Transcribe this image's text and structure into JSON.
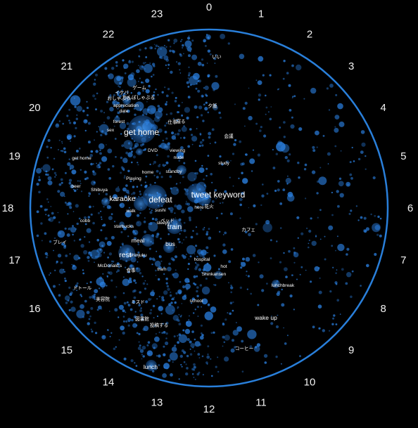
{
  "hours": [
    "0",
    "1",
    "2",
    "3",
    "4",
    "5",
    "6",
    "7",
    "8",
    "9",
    "10",
    "11",
    "12",
    "13",
    "14",
    "15",
    "16",
    "17",
    "18",
    "19",
    "20",
    "21",
    "22",
    "23"
  ],
  "keywords": [
    {
      "text": "get home",
      "size": "large"
    },
    {
      "text": "tweet keyword",
      "size": "large"
    },
    {
      "text": "defeat",
      "size": "large"
    },
    {
      "text": "karaoke",
      "size": "medium"
    },
    {
      "text": "rest",
      "size": "medium"
    },
    {
      "text": "train",
      "size": "medium"
    },
    {
      "text": "meal",
      "size": "small"
    },
    {
      "text": "bus",
      "size": "small"
    },
    {
      "text": "lunch",
      "size": "small"
    },
    {
      "text": "lunchbreak",
      "size": "tiny"
    },
    {
      "text": "wake up",
      "size": "small"
    },
    {
      "text": "school",
      "size": "tiny"
    },
    {
      "text": "hospital",
      "size": "tiny"
    },
    {
      "text": "hot",
      "size": "tiny"
    },
    {
      "text": "Shinkansen",
      "size": "tiny"
    },
    {
      "text": "tram",
      "size": "tiny"
    },
    {
      "text": "Shinjuku",
      "size": "tiny"
    },
    {
      "text": "McDonald's",
      "size": "tiny"
    },
    {
      "text": "starbucks",
      "size": "tiny"
    },
    {
      "text": "cobb",
      "size": "tiny"
    },
    {
      "text": "walk",
      "size": "tiny"
    },
    {
      "text": "Shibuya",
      "size": "tiny"
    },
    {
      "text": "beer",
      "size": "tiny"
    },
    {
      "text": "sushi",
      "size": "tiny"
    },
    {
      "text": "here",
      "size": "tiny"
    },
    {
      "text": "sleepy",
      "size": "tiny"
    },
    {
      "text": "home",
      "size": "tiny"
    },
    {
      "text": "standby",
      "size": "tiny"
    },
    {
      "text": "Playing",
      "size": "tiny"
    },
    {
      "text": "DVD",
      "size": "tiny"
    },
    {
      "text": "viewing",
      "size": "tiny"
    },
    {
      "text": "nude",
      "size": "tiny"
    },
    {
      "text": "study",
      "size": "tiny"
    },
    {
      "text": "appreciation",
      "size": "tiny"
    },
    {
      "text": "date",
      "size": "tiny"
    },
    {
      "text": "sex",
      "size": "tiny"
    },
    {
      "text": "forest",
      "size": "tiny"
    },
    {
      "text": "get home",
      "size": "tiny"
    },
    {
      "text": "ブレイ",
      "size": "tiny"
    },
    {
      "text": "カフェ",
      "size": "tiny"
    },
    {
      "text": "コーヒー",
      "size": "tiny"
    },
    {
      "text": "投稿する",
      "size": "tiny"
    },
    {
      "text": "図書館",
      "size": "tiny"
    },
    {
      "text": "ミスド",
      "size": "tiny"
    },
    {
      "text": "食事",
      "size": "tiny"
    },
    {
      "text": "ドトール",
      "size": "tiny"
    },
    {
      "text": "美容院",
      "size": "tiny"
    },
    {
      "text": "会議",
      "size": "tiny"
    },
    {
      "text": "ベッド",
      "size": "tiny"
    },
    {
      "text": "イケバ",
      "size": "tiny"
    },
    {
      "text": "おしゃぶり",
      "size": "tiny"
    },
    {
      "text": "ちんぽしゃぶる",
      "size": "tiny"
    },
    {
      "text": "ゲーム",
      "size": "tiny"
    },
    {
      "text": "寝る",
      "size": "tiny"
    },
    {
      "text": "仕事",
      "size": "tiny"
    },
    {
      "text": "夕飯",
      "size": "tiny"
    },
    {
      "text": "いい",
      "size": "tiny"
    },
    {
      "text": "花火",
      "size": "tiny"
    }
  ]
}
